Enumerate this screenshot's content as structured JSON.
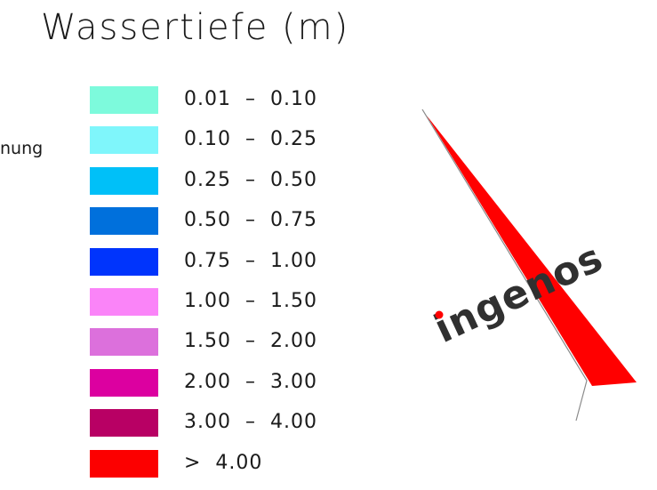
{
  "title": "Wassertiefe (m)",
  "clipped_label": "nung",
  "legend": [
    {
      "range": "0.01  –  0.10",
      "color": "#7dfadc"
    },
    {
      "range": "0.10  –  0.25",
      "color": "#7ff6fb"
    },
    {
      "range": "0.25  –  0.50",
      "color": "#00c0f8"
    },
    {
      "range": "0.50  –  0.75",
      "color": "#0070dc"
    },
    {
      "range": "0.75  –  1.00",
      "color": "#0034fc"
    },
    {
      "range": "1.00  –  1.50",
      "color": "#fa84f8"
    },
    {
      "range": "1.50  –  2.00",
      "color": "#dc70dc"
    },
    {
      "range": "2.00  –  3.00",
      "color": "#dc00a0"
    },
    {
      "range": "3.00  –  4.00",
      "color": "#b80064"
    },
    {
      "range": ">  4.00",
      "color": "#fc0000"
    }
  ],
  "logo": {
    "text": "ingenos",
    "accent": "#ff0000",
    "text_color": "#303030"
  }
}
